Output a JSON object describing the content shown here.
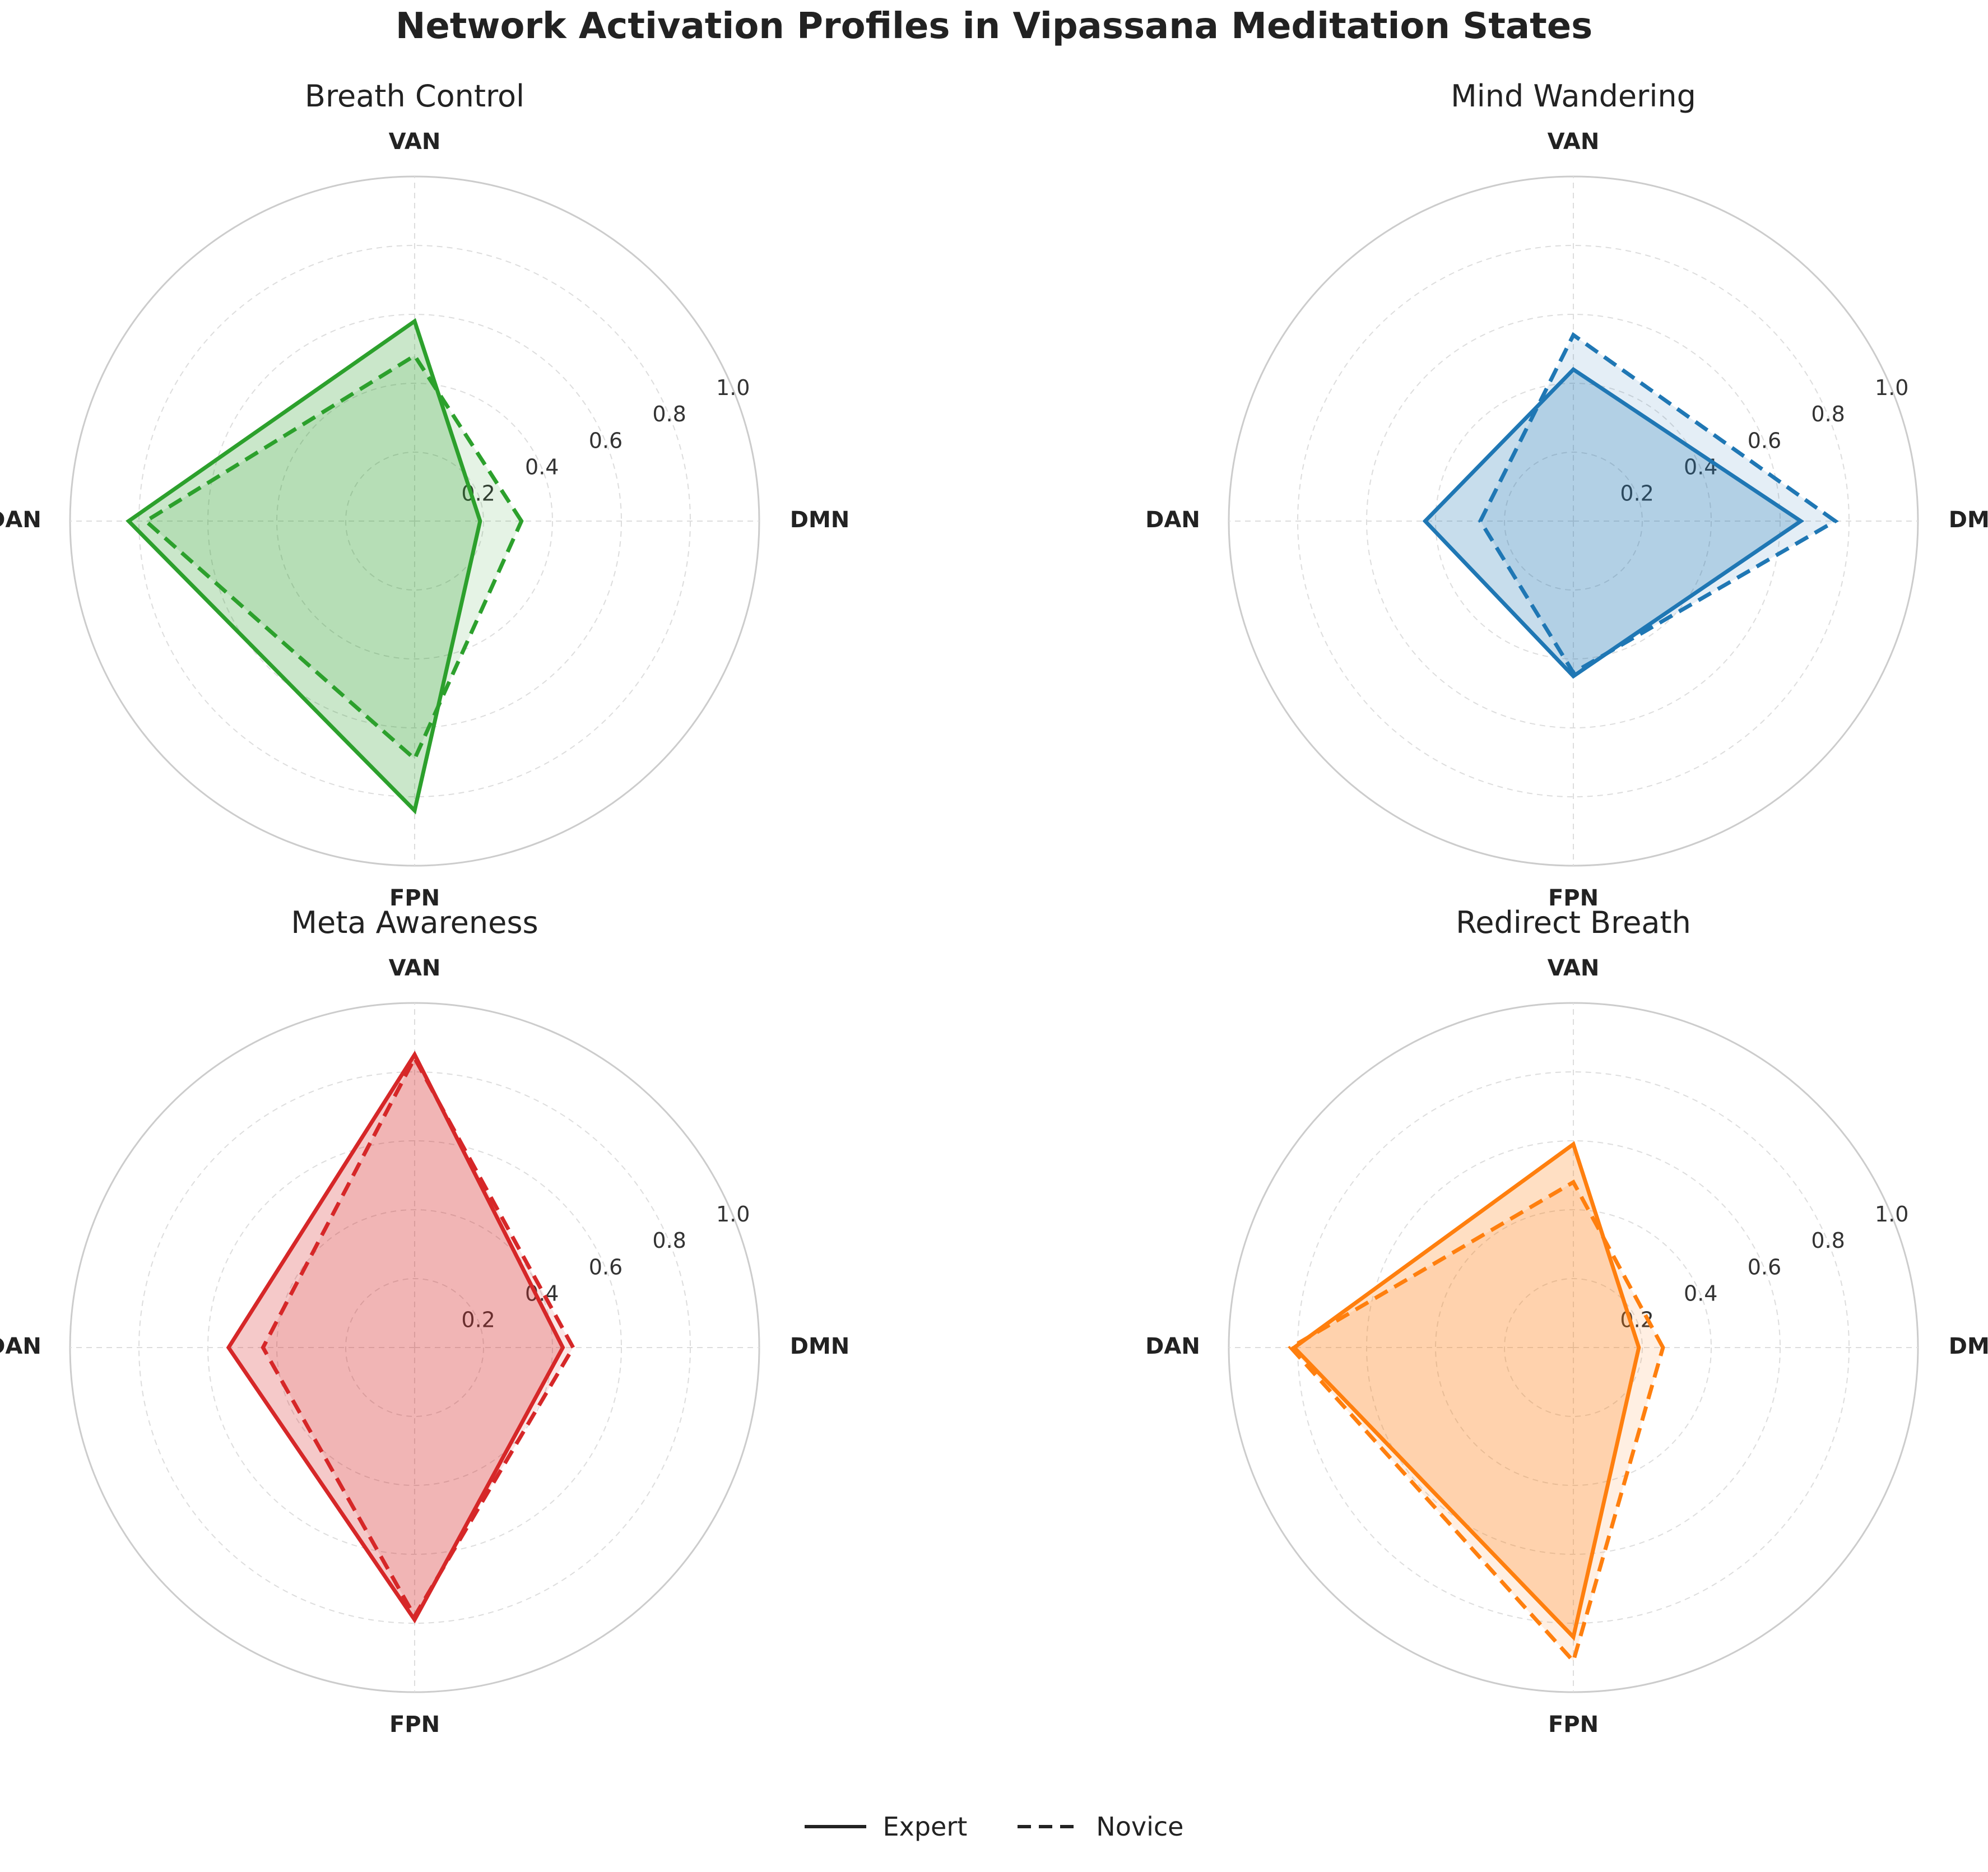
{
  "title": "Network Activation Profiles in Vipassana Meditation States",
  "chart_data": [
    {
      "type": "radar",
      "title": "Breath Control",
      "color": "#2ca02c",
      "axes": [
        "DMN",
        "VAN",
        "DAN",
        "FPN"
      ],
      "rticks": [
        "0.2",
        "0.4",
        "0.6",
        "0.8",
        "1.0"
      ],
      "rlim": [
        0,
        1
      ],
      "grid": true,
      "series": [
        {
          "name": "Expert",
          "style": "solid",
          "values": [
            0.19,
            0.58,
            0.83,
            0.84
          ]
        },
        {
          "name": "Novice",
          "style": "dashed",
          "values": [
            0.31,
            0.48,
            0.78,
            0.69
          ]
        }
      ]
    },
    {
      "type": "radar",
      "title": "Mind Wandering",
      "color": "#1f77b4",
      "axes": [
        "DMN",
        "VAN",
        "DAN",
        "FPN"
      ],
      "rticks": [
        "0.2",
        "0.4",
        "0.6",
        "0.8",
        "1.0"
      ],
      "rlim": [
        0,
        1
      ],
      "grid": true,
      "series": [
        {
          "name": "Expert",
          "style": "solid",
          "values": [
            0.66,
            0.44,
            0.43,
            0.45
          ]
        },
        {
          "name": "Novice",
          "style": "dashed",
          "values": [
            0.76,
            0.54,
            0.27,
            0.44
          ]
        }
      ]
    },
    {
      "type": "radar",
      "title": "Meta Awareness",
      "color": "#d62728",
      "axes": [
        "DMN",
        "VAN",
        "DAN",
        "FPN"
      ],
      "rticks": [
        "0.2",
        "0.4",
        "0.6",
        "0.8",
        "1.0"
      ],
      "rlim": [
        0,
        1
      ],
      "grid": true,
      "series": [
        {
          "name": "Expert",
          "style": "solid",
          "values": [
            0.43,
            0.85,
            0.54,
            0.79
          ]
        },
        {
          "name": "Novice",
          "style": "dashed",
          "values": [
            0.46,
            0.84,
            0.44,
            0.78
          ]
        }
      ]
    },
    {
      "type": "radar",
      "title": "Redirect Breath",
      "color": "#ff7f0e",
      "axes": [
        "DMN",
        "VAN",
        "DAN",
        "FPN"
      ],
      "rticks": [
        "0.2",
        "0.4",
        "0.6",
        "0.8",
        "1.0"
      ],
      "rlim": [
        0,
        1
      ],
      "grid": true,
      "series": [
        {
          "name": "Expert",
          "style": "solid",
          "values": [
            0.19,
            0.59,
            0.81,
            0.84
          ]
        },
        {
          "name": "Novice",
          "style": "dashed",
          "values": [
            0.26,
            0.48,
            0.82,
            0.91
          ]
        }
      ]
    }
  ],
  "legend": {
    "placement": "bottom-center",
    "items": [
      {
        "label": "Expert",
        "style": "solid"
      },
      {
        "label": "Novice",
        "style": "dashed"
      }
    ]
  }
}
